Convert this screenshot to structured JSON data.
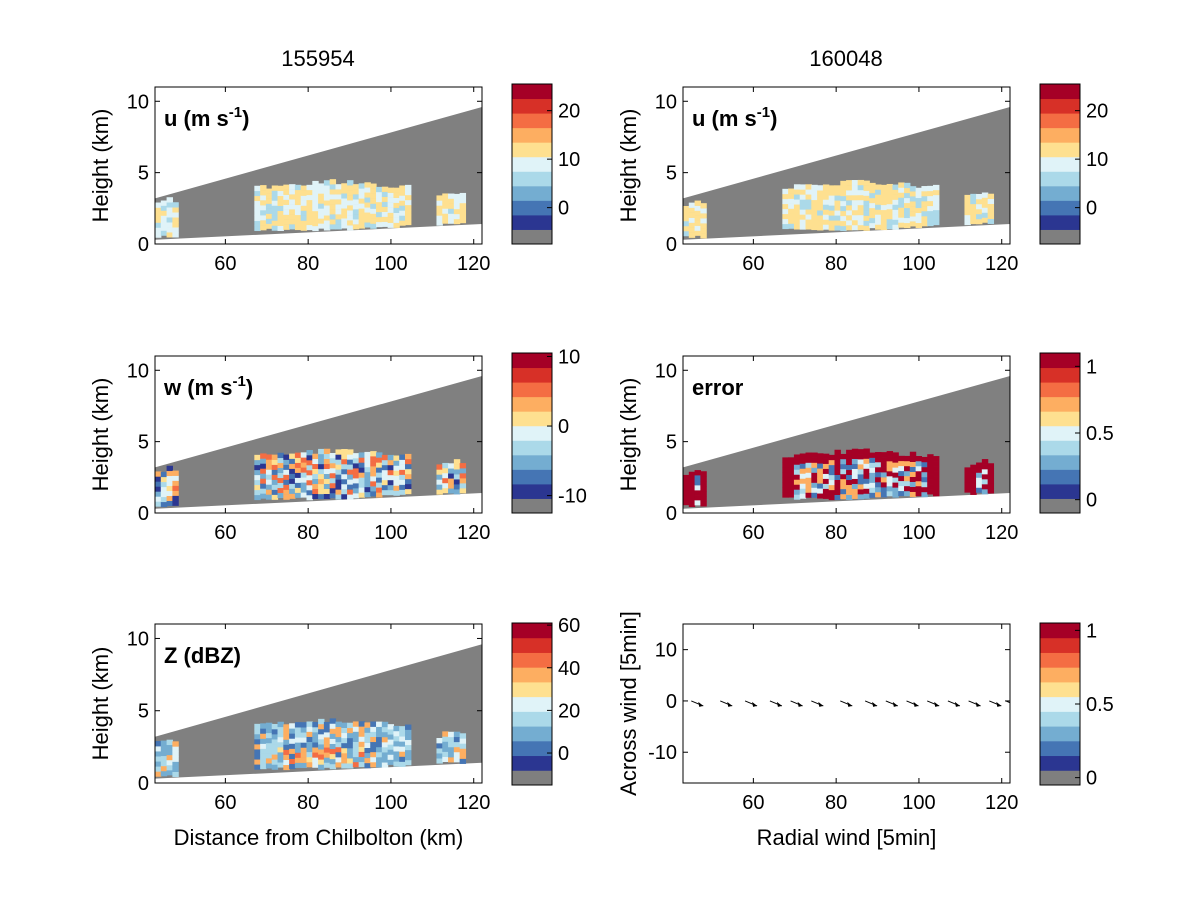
{
  "column_titles": [
    "155954",
    "160048"
  ],
  "colorbar_colors": [
    "#7f7f7f",
    "#2b3691",
    "#4575b4",
    "#74add1",
    "#abd9e9",
    "#e0f3f8",
    "#fee090",
    "#fdae61",
    "#f46d43",
    "#d73027",
    "#a50026"
  ],
  "chart_data": [
    {
      "type": "heatmap",
      "title": "155954",
      "field_label": "u (m s",
      "field_label_exp": "-1",
      "field_label_end": ")",
      "xlim": [
        43,
        122
      ],
      "ylim": [
        0,
        11
      ],
      "xticks": [
        60,
        80,
        100,
        120
      ],
      "yticks": [
        0,
        5,
        10
      ],
      "xlabel": "",
      "ylabel": "Height (km)",
      "colorbar": {
        "ticks": [
          0,
          10,
          20
        ],
        "range": [
          -7.5,
          25.5
        ]
      }
    },
    {
      "type": "heatmap",
      "title": "160048",
      "field_label": "u (m s",
      "field_label_exp": "-1",
      "field_label_end": ")",
      "xlim": [
        43,
        122
      ],
      "ylim": [
        0,
        11
      ],
      "xticks": [
        60,
        80,
        100,
        120
      ],
      "yticks": [
        0,
        5,
        10
      ],
      "xlabel": "",
      "ylabel": "Height (km)",
      "colorbar": {
        "ticks": [
          0,
          10,
          20
        ],
        "range": [
          -7.5,
          25.5
        ]
      }
    },
    {
      "type": "heatmap",
      "field_label": "w (m s",
      "field_label_exp": "-1",
      "field_label_end": ")",
      "xlim": [
        43,
        122
      ],
      "ylim": [
        0,
        11
      ],
      "xticks": [
        60,
        80,
        100,
        120
      ],
      "yticks": [
        0,
        5,
        10
      ],
      "xlabel": "",
      "ylabel": "Height (km)",
      "colorbar": {
        "ticks": [
          -10,
          0,
          10
        ],
        "range": [
          -12.5,
          10.5
        ]
      }
    },
    {
      "type": "heatmap",
      "field_label": "error",
      "xlim": [
        43,
        122
      ],
      "ylim": [
        0,
        11
      ],
      "xticks": [
        60,
        80,
        100,
        120
      ],
      "yticks": [
        0,
        5,
        10
      ],
      "xlabel": "",
      "ylabel": "Height (km)",
      "colorbar": {
        "ticks": [
          0,
          0.5,
          1
        ],
        "range": [
          -0.1,
          1.1
        ]
      }
    },
    {
      "type": "heatmap",
      "field_label": "Z (dBZ)",
      "xlim": [
        43,
        122
      ],
      "ylim": [
        0,
        11
      ],
      "xticks": [
        60,
        80,
        100,
        120
      ],
      "yticks": [
        0,
        5,
        10
      ],
      "xlabel": "Distance from Chilbolton (km)",
      "ylabel": "Height (km)",
      "colorbar": {
        "ticks": [
          0,
          20,
          40,
          60
        ],
        "range": [
          -15,
          61
        ]
      }
    },
    {
      "type": "scatter",
      "xlim": [
        43,
        122
      ],
      "ylim": [
        -16,
        15
      ],
      "xticks": [
        60,
        80,
        100,
        120
      ],
      "yticks": [
        -10,
        0,
        10
      ],
      "xlabel": "Radial wind [5min]",
      "ylabel": "Across wind [5min]",
      "colorbar": {
        "ticks": [
          0,
          0.5,
          1
        ],
        "range": [
          -0.05,
          1.05
        ]
      },
      "x": [
        45,
        52,
        58,
        64,
        69,
        74,
        81,
        87,
        92,
        97,
        102,
        107,
        112,
        117,
        121
      ],
      "y": [
        0,
        0,
        0,
        0,
        0,
        0,
        0,
        0,
        0,
        0,
        0,
        0,
        0,
        0,
        0
      ]
    }
  ]
}
